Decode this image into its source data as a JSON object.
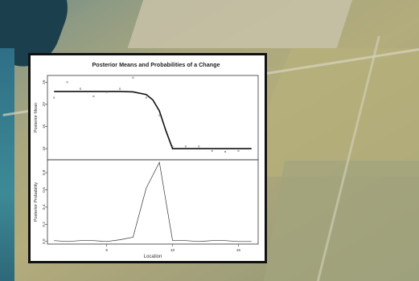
{
  "chart_data": [
    {
      "type": "scatter",
      "title": "Posterior Means and Probabilities of a Change",
      "ylabel": "Posterior Mean",
      "xlim": [
        0.5,
        16.5
      ],
      "ylim": [
        7.5,
        26.5
      ],
      "yticks": [
        10,
        15,
        20,
        25
      ],
      "grid": false,
      "series": [
        {
          "kind": "points",
          "x": [
            1,
            2,
            3,
            4,
            5,
            6,
            7,
            8,
            9,
            10,
            11,
            12,
            13,
            14,
            15
          ],
          "values": [
            21.5,
            25.0,
            23.5,
            21.8,
            22.8,
            23.5,
            26.0,
            21.5,
            17.5,
            10.5,
            10.5,
            10.5,
            9.5,
            9.3,
            9.5
          ]
        },
        {
          "kind": "line",
          "x": [
            1,
            2,
            3,
            4,
            5,
            6,
            7,
            8,
            8.5,
            9,
            9.5,
            10,
            11,
            12,
            13,
            14,
            15,
            16
          ],
          "values": [
            22.9,
            22.9,
            22.9,
            22.9,
            22.9,
            22.9,
            22.8,
            22.2,
            21.0,
            18.5,
            14.0,
            10.0,
            10.0,
            10.0,
            10.0,
            10.0,
            10.0,
            10.0
          ]
        }
      ]
    },
    {
      "type": "line",
      "ylabel": "Posterior Probability",
      "xlabel": "Location",
      "xlim": [
        0.5,
        16.5
      ],
      "ylim": [
        -0.03,
        0.95
      ],
      "xticks": [
        5,
        10,
        15
      ],
      "yticks": [
        0.0,
        0.2,
        0.4,
        0.6,
        0.8
      ],
      "grid": false,
      "series": [
        {
          "x": [
            1,
            2,
            3,
            4,
            5,
            6,
            7,
            8,
            9,
            10,
            11,
            12,
            13,
            14,
            15,
            16
          ],
          "values": [
            0.01,
            0.0,
            0.01,
            0.01,
            0.0,
            0.02,
            0.05,
            0.62,
            0.92,
            0.01,
            0.01,
            0.0,
            0.01,
            0.01,
            0.0,
            0.0
          ]
        }
      ]
    }
  ]
}
